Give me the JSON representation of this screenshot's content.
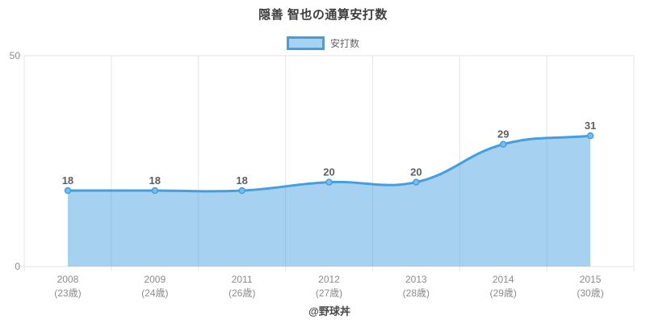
{
  "title": "隠善 智也の通算安打数",
  "legend": {
    "label": "安打数"
  },
  "footer": {
    "credit": "@野球丼"
  },
  "chart_data": {
    "type": "area",
    "title": "隠善 智也の通算安打数",
    "categories": [
      "2008",
      "2009",
      "2011",
      "2012",
      "2013",
      "2014",
      "2015"
    ],
    "category_sublabels": [
      "(23歳)",
      "(24歳)",
      "(26歳)",
      "(27歳)",
      "(28歳)",
      "(29歳)",
      "(30歳)"
    ],
    "series": [
      {
        "name": "安打数",
        "values": [
          18,
          18,
          18,
          20,
          20,
          29,
          31
        ]
      }
    ],
    "point_labels": [
      "18",
      "18",
      "18",
      "20",
      "20",
      "29",
      "31"
    ],
    "ylim": [
      0,
      50
    ],
    "yticks": [
      0,
      50
    ],
    "grid": "vertical category gridlines + top gridline, light gray",
    "legend_position": "top",
    "xlabel": "",
    "ylabel": "",
    "colors": {
      "line": "#459ee0",
      "area_fill": "rgba(77,163,226,0.5)",
      "point_fill": "#7abced",
      "point_stroke": "#459ee0",
      "grid": "#e4e4e4",
      "axis_text": "#8b8b8b",
      "value_label": "#5f5f5f",
      "title_text": "#3d3d3d",
      "legend_text": "#666666",
      "footer_text": "#4a4a4a"
    }
  }
}
